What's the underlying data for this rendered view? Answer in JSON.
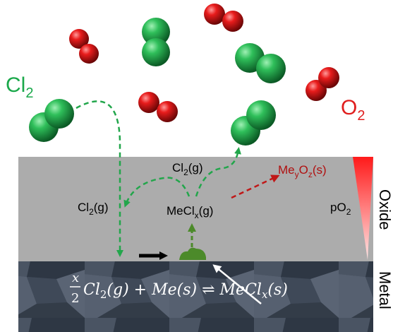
{
  "labels": {
    "cl2_top": "Cl",
    "cl2_top_sub": "2",
    "o2_top": "O",
    "o2_top_sub": "2",
    "cl2g_upper": "Cl",
    "cl2g_upper_sub": "2",
    "cl2g_upper_tail": "(g)",
    "cl2g_left": "Cl",
    "cl2g_left_sub": "2",
    "cl2g_left_tail": "(g)",
    "mecl_main": "MeCl",
    "mecl_sub": "x",
    "mecl_tail": "(g)",
    "meo_main": "Me",
    "meo_sub1": "y",
    "meo_mid": "O",
    "meo_sub2": "z",
    "meo_tail": "(s)",
    "po2_main": "pO",
    "po2_sub": "2",
    "oxide": "Oxide",
    "metal": "Metal"
  },
  "equation": {
    "frac_num": "x",
    "frac_den": "2",
    "cl": "Cl",
    "cl_sub": "2",
    "g_phase": "(g) + ",
    "me": "Me",
    "s_phase": "(s) ⇌ ",
    "mecl": "MeCl",
    "mecl_sub": "x",
    "s_phase_end": "(s)"
  },
  "colors": {
    "chlorine": "#1aa84a",
    "oxygen": "#e01e1e",
    "oxide_layer": "#acacac",
    "metal_layer": "#3a4452",
    "arrow_green": "#22a64b",
    "arrow_red": "#c01818",
    "product_green": "#4c8a2a"
  }
}
